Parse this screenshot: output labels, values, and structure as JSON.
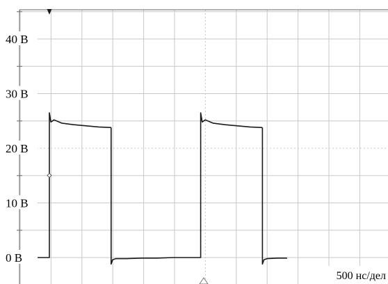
{
  "chart_data": {
    "type": "line",
    "title": "",
    "xlabel": "",
    "ylabel": "",
    "timebase": "500 нс/дел",
    "y_unit": "В",
    "ylim": [
      -3.5,
      48.5
    ],
    "x_divisions": 12,
    "y_ticks": [
      {
        "value": 0,
        "label": "0 В"
      },
      {
        "value": 10,
        "label": "10 В"
      },
      {
        "value": 20,
        "label": "20 В"
      },
      {
        "value": 30,
        "label": "30 В"
      },
      {
        "value": 40,
        "label": "40 В"
      }
    ],
    "grid": true,
    "series": [
      {
        "x": [
          -0.9,
          -0.5,
          0.0,
          0.0,
          0.05,
          0.15,
          0.4,
          0.8,
          1.2,
          1.6,
          1.99,
          2.0,
          2.0,
          2.05,
          2.15,
          2.5,
          3.0,
          3.5,
          4.0,
          4.5,
          4.9,
          4.9,
          4.95,
          5.05,
          5.3,
          5.7,
          6.1,
          6.5,
          6.88,
          6.9,
          6.9,
          6.95,
          7.05,
          7.4,
          7.7
        ],
        "y": [
          0,
          0,
          0,
          26.5,
          24.8,
          25.2,
          24.6,
          24.3,
          24.1,
          23.9,
          23.8,
          23.7,
          -1.2,
          -0.4,
          -0.2,
          -0.2,
          -0.1,
          -0.1,
          0,
          0,
          0,
          26.5,
          24.8,
          25.2,
          24.6,
          24.3,
          24.1,
          23.9,
          23.8,
          23.7,
          -1.2,
          -0.4,
          -0.2,
          -0.1,
          -0.1
        ]
      }
    ]
  },
  "colors": {
    "grid": "#c8c8c8",
    "axis": "#6a6a6a",
    "trace": "#1a1a1a"
  },
  "markers": {
    "trigger_icon": "filled-down-triangle",
    "trigger_level_icon": "open-diamond",
    "time_position_icon": "open-up-triangle"
  }
}
